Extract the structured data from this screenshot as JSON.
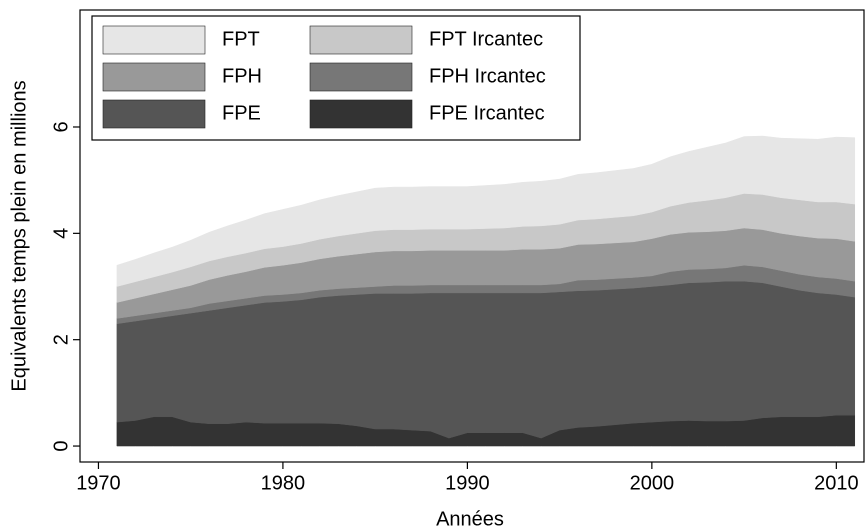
{
  "chart_data": {
    "type": "area",
    "stacked": true,
    "x_label": "Années",
    "y_label": "Equivalents temps plein en millions",
    "x": [
      1971,
      1972,
      1973,
      1974,
      1975,
      1976,
      1977,
      1978,
      1979,
      1980,
      1981,
      1982,
      1983,
      1984,
      1985,
      1986,
      1987,
      1988,
      1989,
      1990,
      1991,
      1992,
      1993,
      1994,
      1995,
      1996,
      1997,
      1998,
      1999,
      2000,
      2001,
      2002,
      2003,
      2004,
      2005,
      2006,
      2007,
      2008,
      2009,
      2010,
      2011
    ],
    "series": [
      {
        "name": "FPE Ircantec",
        "color": "#333333",
        "values": [
          0.45,
          0.48,
          0.55,
          0.55,
          0.45,
          0.42,
          0.42,
          0.45,
          0.43,
          0.43,
          0.43,
          0.43,
          0.42,
          0.38,
          0.32,
          0.32,
          0.3,
          0.28,
          0.15,
          0.25,
          0.25,
          0.25,
          0.25,
          0.15,
          0.3,
          0.35,
          0.37,
          0.4,
          0.43,
          0.45,
          0.47,
          0.48,
          0.47,
          0.47,
          0.48,
          0.53,
          0.55,
          0.55,
          0.55,
          0.58,
          0.58
        ]
      },
      {
        "name": "FPE",
        "color": "#555555",
        "values": [
          1.85,
          1.87,
          1.85,
          1.9,
          2.05,
          2.13,
          2.18,
          2.2,
          2.27,
          2.29,
          2.32,
          2.37,
          2.41,
          2.47,
          2.55,
          2.55,
          2.57,
          2.6,
          2.73,
          2.63,
          2.63,
          2.63,
          2.63,
          2.73,
          2.6,
          2.57,
          2.56,
          2.55,
          2.54,
          2.55,
          2.56,
          2.59,
          2.61,
          2.63,
          2.62,
          2.54,
          2.45,
          2.38,
          2.33,
          2.27,
          2.22
        ]
      },
      {
        "name": "FPH Ircantec",
        "color": "#777777",
        "values": [
          0.1,
          0.1,
          0.1,
          0.1,
          0.1,
          0.13,
          0.13,
          0.13,
          0.13,
          0.13,
          0.13,
          0.13,
          0.13,
          0.13,
          0.13,
          0.15,
          0.15,
          0.15,
          0.15,
          0.15,
          0.15,
          0.15,
          0.15,
          0.15,
          0.15,
          0.2,
          0.2,
          0.2,
          0.2,
          0.2,
          0.25,
          0.25,
          0.25,
          0.25,
          0.3,
          0.3,
          0.3,
          0.3,
          0.3,
          0.3,
          0.3
        ]
      },
      {
        "name": "FPH",
        "color": "#999999",
        "values": [
          0.3,
          0.33,
          0.36,
          0.39,
          0.42,
          0.45,
          0.48,
          0.5,
          0.53,
          0.55,
          0.57,
          0.59,
          0.61,
          0.63,
          0.65,
          0.65,
          0.65,
          0.65,
          0.65,
          0.65,
          0.65,
          0.65,
          0.67,
          0.67,
          0.67,
          0.67,
          0.67,
          0.67,
          0.67,
          0.7,
          0.7,
          0.7,
          0.7,
          0.7,
          0.7,
          0.7,
          0.7,
          0.72,
          0.73,
          0.75,
          0.75
        ]
      },
      {
        "name": "FPT Ircantec",
        "color": "#c8c8c8",
        "values": [
          0.3,
          0.31,
          0.32,
          0.33,
          0.35,
          0.35,
          0.35,
          0.35,
          0.35,
          0.35,
          0.36,
          0.37,
          0.38,
          0.39,
          0.4,
          0.4,
          0.4,
          0.4,
          0.4,
          0.4,
          0.41,
          0.42,
          0.43,
          0.44,
          0.45,
          0.46,
          0.47,
          0.48,
          0.49,
          0.5,
          0.53,
          0.56,
          0.59,
          0.62,
          0.65,
          0.66,
          0.67,
          0.68,
          0.68,
          0.69,
          0.7
        ]
      },
      {
        "name": "FPT",
        "color": "#e6e6e6",
        "values": [
          0.4,
          0.42,
          0.45,
          0.47,
          0.5,
          0.54,
          0.58,
          0.62,
          0.66,
          0.7,
          0.72,
          0.74,
          0.76,
          0.78,
          0.8,
          0.8,
          0.8,
          0.8,
          0.8,
          0.8,
          0.81,
          0.82,
          0.83,
          0.84,
          0.85,
          0.86,
          0.87,
          0.88,
          0.89,
          0.9,
          0.93,
          0.96,
          1.0,
          1.03,
          1.07,
          1.1,
          1.12,
          1.15,
          1.18,
          1.22,
          1.25
        ]
      }
    ],
    "legend_order": [
      "FPT",
      "FPT Ircantec",
      "FPH",
      "FPH Ircantec",
      "FPE",
      "FPE Ircantec"
    ],
    "xlim": [
      1969,
      2011.5
    ],
    "ylim": [
      -0.3,
      8.2
    ],
    "xticks": [
      1970,
      1980,
      1990,
      2000,
      2010
    ],
    "yticks": [
      0,
      2,
      4,
      6
    ],
    "grid": false,
    "legend": "upper left"
  }
}
